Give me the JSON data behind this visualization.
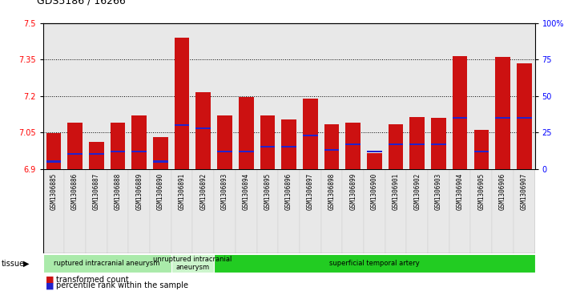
{
  "title": "GDS5186 / 16266",
  "samples": [
    "GSM1306885",
    "GSM1306886",
    "GSM1306887",
    "GSM1306888",
    "GSM1306889",
    "GSM1306890",
    "GSM1306891",
    "GSM1306892",
    "GSM1306893",
    "GSM1306894",
    "GSM1306895",
    "GSM1306896",
    "GSM1306897",
    "GSM1306898",
    "GSM1306899",
    "GSM1306900",
    "GSM1306901",
    "GSM1306902",
    "GSM1306903",
    "GSM1306904",
    "GSM1306905",
    "GSM1306906",
    "GSM1306907"
  ],
  "transformed_count": [
    7.046,
    7.09,
    7.01,
    7.09,
    7.12,
    7.03,
    7.44,
    7.215,
    7.12,
    7.197,
    7.12,
    7.105,
    7.19,
    7.085,
    7.09,
    6.965,
    7.085,
    7.115,
    7.11,
    7.365,
    7.06,
    7.36,
    7.335
  ],
  "percentile_rank": [
    5,
    10,
    10,
    12,
    12,
    5,
    30,
    28,
    12,
    12,
    15,
    15,
    23,
    13,
    17,
    12,
    17,
    17,
    17,
    35,
    12,
    35,
    35
  ],
  "groups": [
    {
      "label": "ruptured intracranial aneurysm",
      "start": 0,
      "end": 6,
      "color": "#aaeaaa"
    },
    {
      "label": "unruptured intracranial\naneurysm",
      "start": 6,
      "end": 8,
      "color": "#ccf5cc"
    },
    {
      "label": "superficial temporal artery",
      "start": 8,
      "end": 23,
      "color": "#22cc22"
    }
  ],
  "y_min": 6.9,
  "y_max": 7.5,
  "y_ticks": [
    6.9,
    7.05,
    7.2,
    7.35,
    7.5
  ],
  "right_y_ticks": [
    0,
    25,
    50,
    75,
    100
  ],
  "right_y_labels": [
    "0",
    "25",
    "50",
    "75",
    "100%"
  ],
  "bar_color": "#cc1111",
  "blue_color": "#2222cc",
  "tick_bg_color": "#d8d8d8",
  "plot_bg": "#ffffff",
  "tissue_label": "tissue",
  "legend_items": [
    {
      "label": "transformed count",
      "color": "#cc1111"
    },
    {
      "label": "percentile rank within the sample",
      "color": "#2222cc"
    }
  ]
}
